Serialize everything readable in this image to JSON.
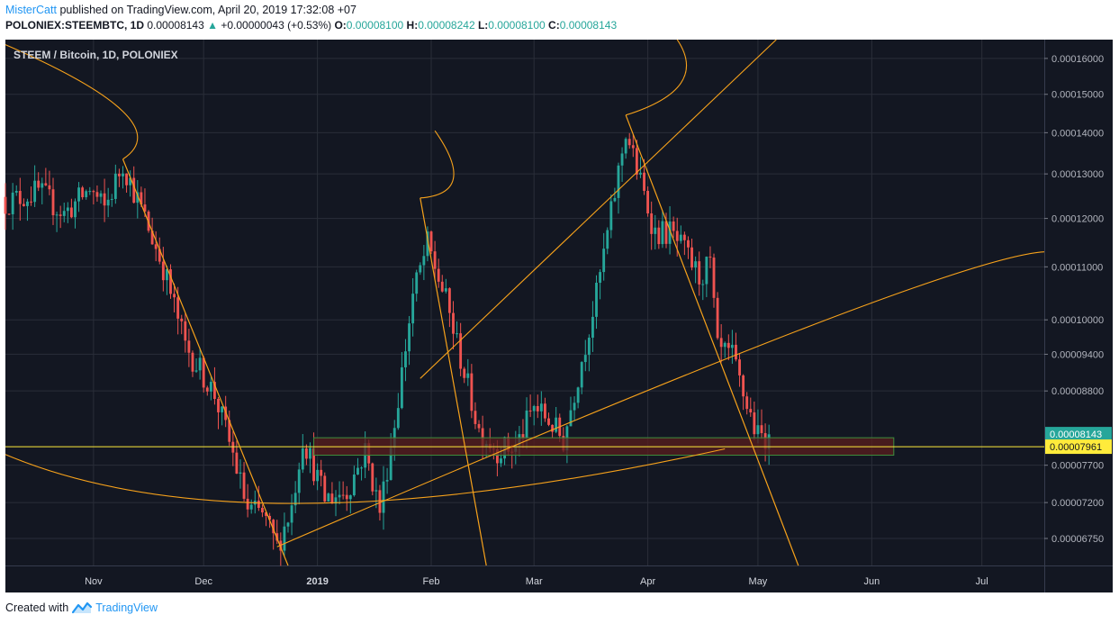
{
  "header": {
    "author": "MisterCatt",
    "published_text": "published on TradingView.com, April 20, 2019 17:32:08 +07",
    "symbol": "POLONIEX:STEEMBTC, 1D",
    "last_price": "0.00008143",
    "change_arrow": "▲",
    "change": "+0.00000043 (+0.53%)",
    "o_label": "O:",
    "o_value": "0.00008100",
    "h_label": "H:",
    "h_value": "0.00008242",
    "l_label": "L:",
    "l_value": "0.00008100",
    "c_label": "C:",
    "c_value": "0.00008143"
  },
  "footer": {
    "created_with": "Created with",
    "brand": "TradingView",
    "brand_icon": "tradingview-logo-icon"
  },
  "colors": {
    "background": "#131722",
    "grid": "#2a2e39",
    "up_candle": "#26a69a",
    "down_candle": "#ef5350",
    "drawing": "#f7a21b",
    "horizontal_line": "#ffeb3b",
    "zone_fill": "#5a1d1d",
    "zone_border": "#3e8e3e",
    "current_price_label": "#26a69a",
    "line_price_label": "#ffeb3b"
  },
  "chart_data": {
    "type": "candlestick",
    "title": "STEEM / Bitcoin, 1D, POLONIEX",
    "y_scale": "log",
    "y_ticks": [
      "0.00016000",
      "0.00015000",
      "0.00014000",
      "0.00013000",
      "0.00012000",
      "0.00011000",
      "0.00010000",
      "0.00009400",
      "0.00008800",
      "0.00007700",
      "0.00007200",
      "0.00006750"
    ],
    "x_ticks": [
      {
        "label": "Nov",
        "date": "2018-11-01",
        "bold": false
      },
      {
        "label": "Dec",
        "date": "2018-12-01",
        "bold": false
      },
      {
        "label": "2019",
        "date": "2019-01-01",
        "bold": true
      },
      {
        "label": "Feb",
        "date": "2019-02-01",
        "bold": false
      },
      {
        "label": "Mar",
        "date": "2019-03-01",
        "bold": false
      },
      {
        "label": "Apr",
        "date": "2019-04-01",
        "bold": false
      },
      {
        "label": "May",
        "date": "2019-05-01",
        "bold": false
      },
      {
        "label": "Jun",
        "date": "2019-06-01",
        "bold": false
      },
      {
        "label": "Jul",
        "date": "2019-07-01",
        "bold": false
      }
    ],
    "x_range": [
      "2018-10-08",
      "2019-07-18"
    ],
    "y_range": [
      6.43e-05,
      0.0001655
    ],
    "grid": true,
    "current_price": {
      "label": "0.00008143",
      "value": 8.143e-05
    },
    "horizontal_line": {
      "label": "0.00007961",
      "value": 7.961e-05
    },
    "support_zone": {
      "from": "2018-12-31",
      "to": "2019-06-07",
      "low": 7.84e-05,
      "high": 8.09e-05
    },
    "key_points": [
      {
        "date": "2018-10-08",
        "close": 0.0001235
      },
      {
        "date": "2018-10-17",
        "close": 0.000126
      },
      {
        "date": "2018-10-24",
        "close": 0.000121
      },
      {
        "date": "2018-10-31",
        "close": 0.0001265
      },
      {
        "date": "2018-11-04",
        "close": 0.000122
      },
      {
        "date": "2018-11-09",
        "close": 0.0001325
      },
      {
        "date": "2018-11-14",
        "close": 0.000122
      },
      {
        "date": "2018-11-20",
        "close": 0.00011
      },
      {
        "date": "2018-11-26",
        "close": 9.55e-05
      },
      {
        "date": "2018-12-04",
        "close": 8.75e-05
      },
      {
        "date": "2018-12-09",
        "close": 7.85e-05
      },
      {
        "date": "2018-12-13",
        "close": 7.1e-05
      },
      {
        "date": "2018-12-17",
        "close": 7.05e-05
      },
      {
        "date": "2018-12-21",
        "close": 6.65e-05
      },
      {
        "date": "2018-12-25",
        "close": 7.15e-05
      },
      {
        "date": "2018-12-28",
        "close": 8.1e-05
      },
      {
        "date": "2019-01-03",
        "close": 7.25e-05
      },
      {
        "date": "2019-01-09",
        "close": 7.35e-05
      },
      {
        "date": "2019-01-14",
        "close": 7.9e-05
      },
      {
        "date": "2019-01-18",
        "close": 7.1e-05
      },
      {
        "date": "2019-01-22",
        "close": 8.3e-05
      },
      {
        "date": "2019-01-27",
        "close": 0.0001045
      },
      {
        "date": "2019-01-31",
        "close": 0.0001145
      },
      {
        "date": "2019-02-05",
        "close": 0.0001035
      },
      {
        "date": "2019-02-10",
        "close": 9.1e-05
      },
      {
        "date": "2019-02-14",
        "close": 8.2e-05
      },
      {
        "date": "2019-02-19",
        "close": 7.92e-05
      },
      {
        "date": "2019-02-24",
        "close": 7.95e-05
      },
      {
        "date": "2019-03-01",
        "close": 8.55e-05
      },
      {
        "date": "2019-03-05",
        "close": 8.35e-05
      },
      {
        "date": "2019-03-09",
        "close": 8.05e-05
      },
      {
        "date": "2019-03-13",
        "close": 9.05e-05
      },
      {
        "date": "2019-03-18",
        "close": 0.0001045
      },
      {
        "date": "2019-03-22",
        "close": 0.000121
      },
      {
        "date": "2019-03-26",
        "close": 0.0001405
      },
      {
        "date": "2019-03-30",
        "close": 0.000128
      },
      {
        "date": "2019-04-03",
        "close": 0.000117
      },
      {
        "date": "2019-04-07",
        "close": 0.000117
      },
      {
        "date": "2019-04-11",
        "close": 0.000113
      },
      {
        "date": "2019-04-15",
        "close": 0.000108
      },
      {
        "date": "2019-04-18",
        "close": 0.0001105
      },
      {
        "date": "2019-04-20",
        "close": 9.45e-05
      },
      {
        "date": "2019-04-24",
        "close": 9.35e-05
      },
      {
        "date": "2019-04-27",
        "close": 8.75e-05
      },
      {
        "date": "2019-05-01",
        "close": 8.1e-05
      },
      {
        "date": "2019-05-04",
        "close": 8.14e-05
      }
    ],
    "drawings": {
      "trend_lines": [
        [
          [
            "2018-11-09",
            0.0001335
          ],
          [
            "2018-12-24",
            6.43e-05
          ]
        ],
        [
          [
            "2019-01-29",
            0.0001245
          ],
          [
            "2019-02-16",
            6.43e-05
          ]
        ],
        [
          [
            "2019-03-26",
            0.0001445
          ],
          [
            "2019-05-12",
            6.43e-05
          ]
        ]
      ],
      "arcs": [
        [
          [
            "2018-10-08",
            0.000164
          ],
          [
            "2018-11-25",
            0.000143
          ],
          [
            "2018-11-09",
            0.0001335
          ]
        ],
        [
          [
            "2018-12-21",
            6.65e-05
          ],
          [
            "2019-06-22",
            0.000112
          ],
          [
            "2019-07-18",
            0.000113
          ]
        ],
        [
          [
            "2019-01-29",
            0.0001245
          ],
          [
            "2019-02-14",
            0.0001255
          ],
          [
            "2019-02-02",
            0.0001405
          ]
        ],
        [
          [
            "2019-03-26",
            0.0001445
          ],
          [
            "2019-04-18",
            0.0001515
          ],
          [
            "2019-04-09",
            0.0001655
          ]
        ],
        [
          [
            "2018-10-08",
            7.85e-05
          ],
          [
            "2018-12-12",
            6.55e-05
          ],
          [
            "2019-04-22",
            7.93e-05
          ]
        ],
        [
          [
            "2019-01-29",
            9e-05
          ],
          [
            "2019-05-06",
            0.0001655
          ]
        ]
      ]
    }
  }
}
